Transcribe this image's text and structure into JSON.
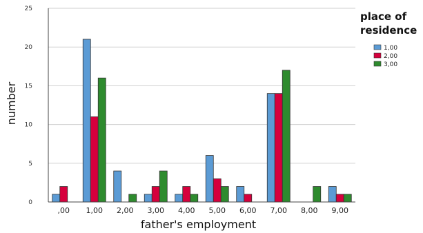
{
  "chart_data": {
    "type": "bar",
    "xlabel": "father's employment",
    "ylabel": "number",
    "categories": [
      ",00",
      "1,00",
      "2,00",
      "3,00",
      "4,00",
      "5,00",
      "6,00",
      "7,00",
      "8,00",
      "9,00"
    ],
    "yticks": [
      0,
      5,
      10,
      15,
      20,
      25
    ],
    "ylim": [
      0,
      25
    ],
    "grid": true,
    "legend": {
      "title_lines": [
        "place of",
        "residence"
      ],
      "placement": "right"
    },
    "series": [
      {
        "name": "1,00",
        "color": "#5b9bd5",
        "values": [
          1,
          21,
          4,
          1,
          1,
          6,
          2,
          14,
          0,
          2
        ]
      },
      {
        "name": "2,00",
        "color": "#d6003d",
        "values": [
          2,
          11,
          0,
          2,
          2,
          3,
          1,
          14,
          0,
          1
        ]
      },
      {
        "name": "3,00",
        "color": "#2e8b2e",
        "values": [
          0,
          16,
          1,
          4,
          1,
          2,
          0,
          17,
          2,
          1
        ]
      }
    ]
  }
}
